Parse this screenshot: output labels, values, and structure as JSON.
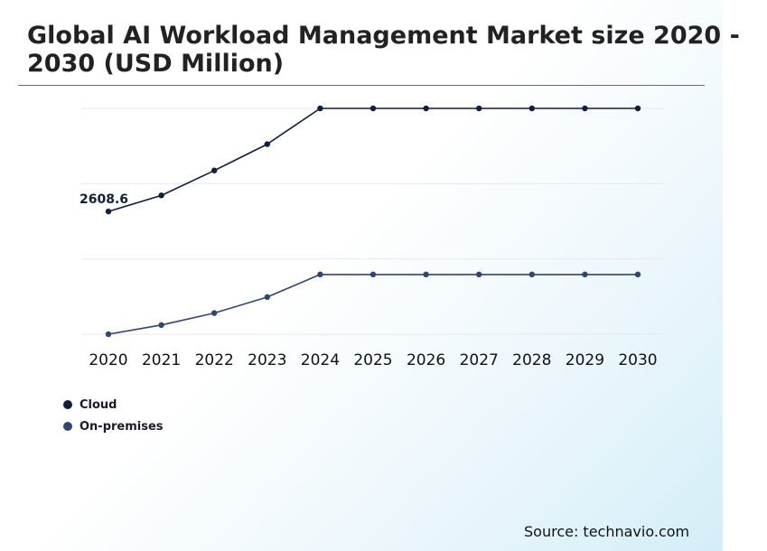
{
  "header": {
    "title": "Global AI Workload Management Market size 2020 - 2030 (USD Million)"
  },
  "footer": {
    "source": "Source: technavio.com"
  },
  "colors": {
    "cloud": "#0f1f40",
    "on_premises": "#2e4677",
    "grid": "#e6e9ee",
    "rule": "#6b6b6b"
  },
  "chart_data": {
    "type": "line",
    "title": "Global AI Workload Management Market size 2020 - 2030 (USD Million)",
    "xlabel": "",
    "ylabel": "",
    "categories": [
      "2020",
      "2021",
      "2022",
      "2023",
      "2024",
      "2025",
      "2026",
      "2027",
      "2028",
      "2029",
      "2030"
    ],
    "ylim": [
      0,
      4800
    ],
    "grid": true,
    "legend_position": "bottom-left",
    "series": [
      {
        "name": "Cloud",
        "color": "#0f1f40",
        "values": [
          2608.6,
          2950,
          3480,
          4040,
          4800,
          4800,
          4800,
          4800,
          4800,
          4800,
          4800
        ]
      },
      {
        "name": "On-premises",
        "color": "#2e4677",
        "values": [
          0,
          195,
          450,
          790,
          1270,
          1270,
          1270,
          1270,
          1270,
          1270,
          1270
        ]
      }
    ],
    "annotations": [
      {
        "series": "Cloud",
        "category": "2020",
        "label": "2608.6"
      }
    ]
  }
}
